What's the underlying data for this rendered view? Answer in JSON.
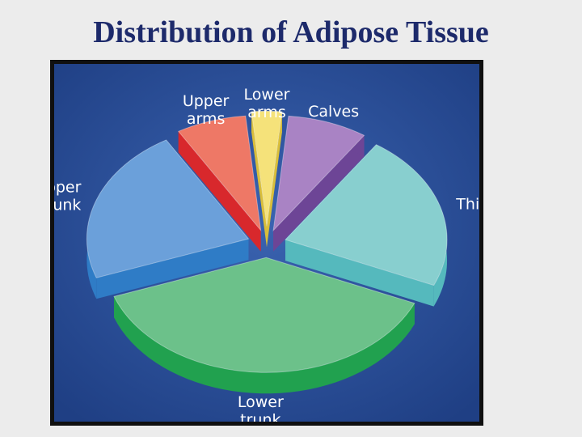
{
  "title": "Distribution of Adipose Tissue",
  "chart_data": {
    "type": "pie",
    "title": "",
    "categories": [
      "Lower arms",
      "Calves",
      "Thighs",
      "Lower trunk",
      "Upper trunk",
      "Upper arms"
    ],
    "values": [
      3,
      8,
      22,
      38,
      22,
      7
    ],
    "colors": {
      "Lower arms": "#f5e27a",
      "Calves": "#a983c4",
      "Thighs": "#88cfcf",
      "Lower trunk": "#6cc18a",
      "Upper trunk": "#6ba0da",
      "Upper arms": "#ee7866"
    },
    "side_colors": {
      "Lower arms": "#d9be3a",
      "Calves": "#6d4596",
      "Thighs": "#55b9bd",
      "Lower trunk": "#21a14f",
      "Upper trunk": "#2f7cc6",
      "Upper arms": "#d8282c"
    },
    "labels": [
      [
        "Lower",
        "arms"
      ],
      [
        "Calves"
      ],
      [
        "Thighs"
      ],
      [
        "Lower",
        "trunk"
      ],
      [
        "Upper",
        "trunk"
      ],
      [
        "Upper",
        "arms"
      ]
    ],
    "background": "#2c4f98",
    "exploded": true,
    "style": "3d"
  }
}
